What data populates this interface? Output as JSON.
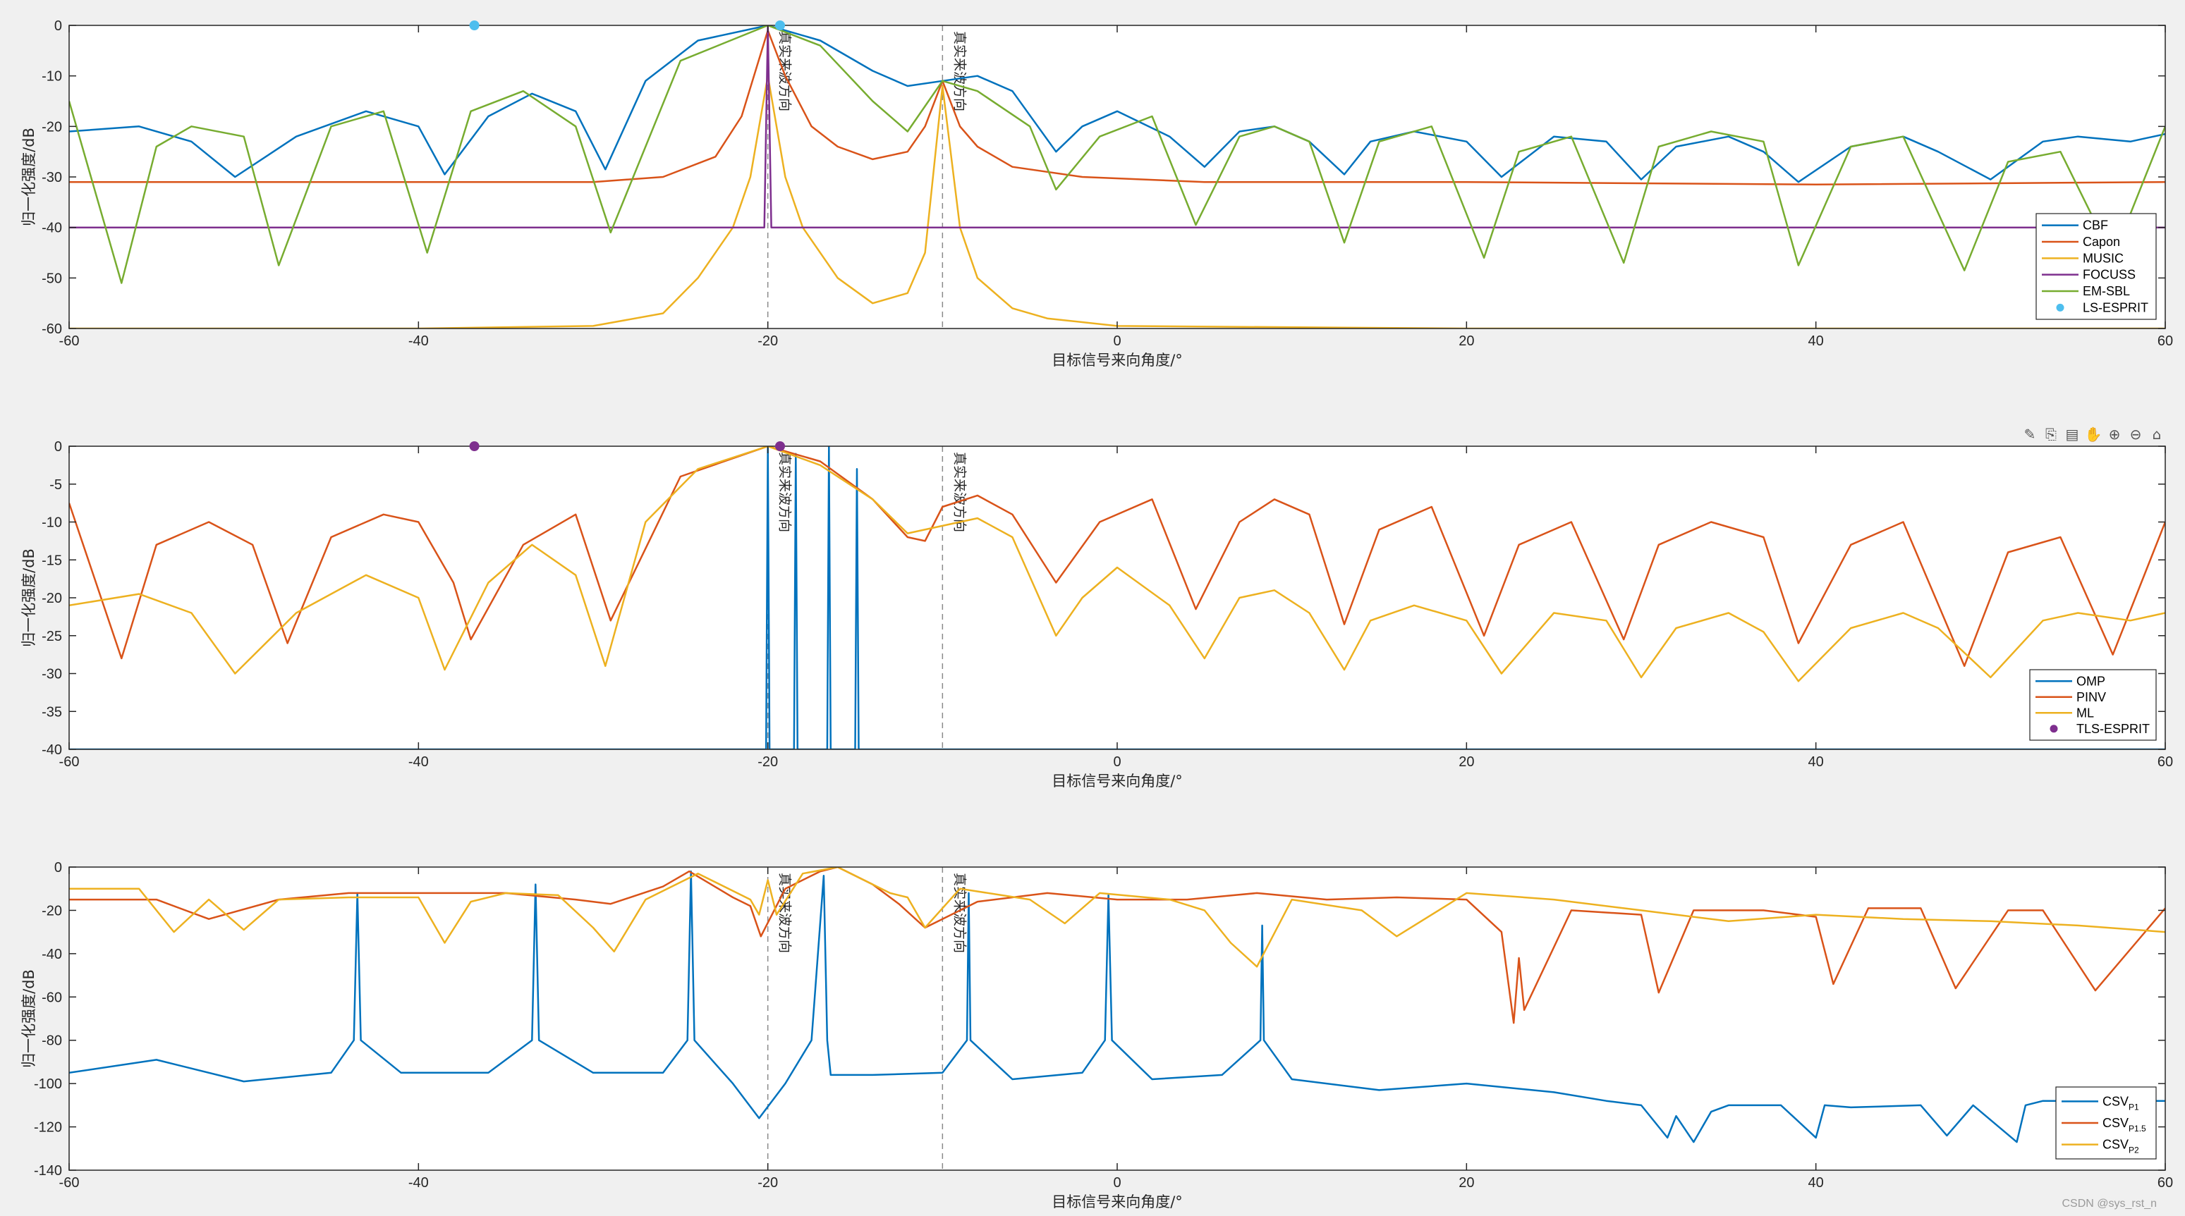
{
  "watermark": "CSDN @sys_rst_n",
  "toolbar": {
    "icons": [
      "brush-icon",
      "datatip-icon",
      "export-icon",
      "pan-icon",
      "zoom-in-icon",
      "zoom-out-icon",
      "home-icon"
    ],
    "glyphs": [
      "✎",
      "⎘",
      "▤",
      "✋",
      "⊕",
      "⊖",
      "⌂"
    ]
  },
  "chart_data": [
    {
      "type": "line",
      "xlabel": "目标信号来向角度/°",
      "ylabel": "归一化强度/dB",
      "xlim": [
        -60,
        60
      ],
      "ylim": [
        -60,
        0
      ],
      "xticks": [
        -60,
        -40,
        -20,
        0,
        20,
        40,
        60
      ],
      "yticks": [
        0,
        -10,
        -20,
        -30,
        -40,
        -50,
        -60
      ],
      "grid": false,
      "legend_position": "bottom-right",
      "annotations": [
        {
          "x": -20,
          "text": "真实来波方向"
        },
        {
          "x": -10,
          "text": "真实来波方向"
        }
      ],
      "series": [
        {
          "name": "CBF",
          "color": "#0072BD",
          "x": [
            -60,
            -56,
            -53,
            -50.5,
            -47,
            -43,
            -40,
            -38.5,
            -36,
            -33.5,
            -31,
            -29.3,
            -27,
            -24,
            -20,
            -17,
            -14,
            -12,
            -10,
            -8,
            -6,
            -3.5,
            -2,
            0,
            3,
            5,
            7,
            9,
            11,
            13,
            14.5,
            17,
            20,
            22,
            25,
            28,
            30,
            32,
            35,
            37,
            39,
            42,
            45,
            47,
            50,
            53,
            55,
            58,
            60
          ],
          "y": [
            -21,
            -20,
            -23,
            -30,
            -22,
            -17,
            -20,
            -29.5,
            -18,
            -13.5,
            -17,
            -28.5,
            -11,
            -3,
            0,
            -3,
            -9,
            -12,
            -11,
            -10,
            -13,
            -25,
            -20,
            -17,
            -22,
            -28,
            -21,
            -20,
            -23,
            -29.5,
            -23,
            -21,
            -23,
            -30,
            -22,
            -23,
            -30.5,
            -24,
            -22,
            -25,
            -31,
            -24,
            -22,
            -25,
            -30.5,
            -23,
            -22,
            -23,
            -21.5
          ]
        },
        {
          "name": "Capon",
          "color": "#D95319",
          "x": [
            -60,
            -40,
            -30,
            -26,
            -23,
            -21.5,
            -20,
            -19,
            -17.5,
            -16,
            -14,
            -12,
            -11,
            -10,
            -9,
            -8,
            -6,
            -2,
            5,
            20,
            40,
            60
          ],
          "y": [
            -31,
            -31,
            -31,
            -30,
            -26,
            -18,
            -1,
            -10,
            -20,
            -24,
            -26.5,
            -25,
            -20,
            -11,
            -20,
            -24,
            -28,
            -30,
            -31,
            -31,
            -31.5,
            -31
          ]
        },
        {
          "name": "MUSIC",
          "color": "#EDB120",
          "x": [
            -60,
            -40,
            -30,
            -26,
            -24,
            -22,
            -21,
            -20,
            -19,
            -18,
            -16,
            -14,
            -12,
            -11,
            -10,
            -9,
            -8,
            -6,
            -4,
            0,
            20,
            40,
            60
          ],
          "y": [
            -60,
            -60,
            -59.5,
            -57,
            -50,
            -40,
            -30,
            -10,
            -30,
            -40,
            -50,
            -55,
            -53,
            -45,
            -12,
            -40,
            -50,
            -56,
            -58,
            -59.5,
            -60,
            -60,
            -60
          ]
        },
        {
          "name": "FOCUSS",
          "color": "#7E2F8E",
          "x": [
            -60,
            -20.2,
            -20,
            -19.8,
            60
          ],
          "y": [
            -40,
            -40,
            0,
            -40,
            -40
          ]
        },
        {
          "name": "EM-SBL",
          "color": "#77AC30",
          "x": [
            -60,
            -57,
            -55,
            -53,
            -50,
            -48,
            -45,
            -42,
            -39.5,
            -37,
            -34,
            -31,
            -29,
            -25,
            -20,
            -17,
            -14,
            -12,
            -10,
            -8,
            -5,
            -3.5,
            -1,
            2,
            4.5,
            7,
            9,
            11,
            13,
            15,
            18,
            21,
            23,
            26,
            29,
            31,
            34,
            37,
            39,
            42,
            45,
            48.5,
            51,
            54,
            57,
            60
          ],
          "y": [
            -15,
            -51,
            -24,
            -20,
            -22,
            -47.5,
            -20,
            -17,
            -45,
            -17,
            -13,
            -20,
            -41,
            -7,
            0,
            -4,
            -15,
            -21,
            -11,
            -13,
            -20,
            -32.5,
            -22,
            -18,
            -39.5,
            -22,
            -20,
            -23,
            -43,
            -23,
            -20,
            -46,
            -25,
            -22,
            -47,
            -24,
            -21,
            -23,
            -47.5,
            -24,
            -22,
            -48.5,
            -27,
            -25,
            -46,
            -20
          ]
        },
        {
          "name": "LS-ESPRIT",
          "color": "#4DBEEE",
          "marker": true,
          "x": [
            -36.8,
            -19.3
          ],
          "y": [
            0,
            0
          ]
        }
      ]
    },
    {
      "type": "line",
      "xlabel": "目标信号来向角度/°",
      "ylabel": "归一化强度/dB",
      "xlim": [
        -60,
        60
      ],
      "ylim": [
        -40,
        0
      ],
      "xticks": [
        -60,
        -40,
        -20,
        0,
        20,
        40,
        60
      ],
      "yticks": [
        0,
        -5,
        -10,
        -15,
        -20,
        -25,
        -30,
        -35,
        -40
      ],
      "grid": false,
      "legend_position": "bottom-right",
      "annotations": [
        {
          "x": -20,
          "text": "真实来波方向"
        },
        {
          "x": -10,
          "text": "真实来波方向"
        }
      ],
      "series": [
        {
          "name": "OMP",
          "color": "#0072BD",
          "x": [
            -60,
            -20.1,
            -20,
            -19.9,
            -18.5,
            -18.4,
            -18.3,
            -16.6,
            -16.5,
            -16.4,
            -15,
            -14.9,
            -14.8,
            60
          ],
          "y": [
            -40,
            -40,
            0,
            -40,
            -40,
            -1,
            -40,
            -40,
            0,
            -40,
            -40,
            -3,
            -40,
            -40
          ]
        },
        {
          "name": "PINV",
          "color": "#D95319",
          "x": [
            -60,
            -57,
            -55,
            -52,
            -49.5,
            -47.5,
            -45,
            -42,
            -40,
            -38,
            -37,
            -34,
            -31,
            -29,
            -25,
            -20,
            -17,
            -14,
            -12,
            -11,
            -10,
            -8,
            -6,
            -3.5,
            -1,
            2,
            4.5,
            7,
            9,
            11,
            13,
            15,
            18,
            21,
            23,
            26,
            29,
            31,
            34,
            37,
            39,
            42,
            45,
            48.5,
            51,
            54,
            57,
            60
          ],
          "y": [
            -7.5,
            -28,
            -13,
            -10,
            -13,
            -26,
            -12,
            -9,
            -10,
            -18,
            -25.5,
            -13,
            -9,
            -23,
            -4,
            0,
            -2,
            -7,
            -12,
            -12.5,
            -8,
            -6.5,
            -9,
            -18,
            -10,
            -7,
            -21.5,
            -10,
            -7,
            -9,
            -23.5,
            -11,
            -8,
            -25,
            -13,
            -10,
            -25.5,
            -13,
            -10,
            -12,
            -26,
            -13,
            -10,
            -29,
            -14,
            -12,
            -27.5,
            -10
          ]
        },
        {
          "name": "ML",
          "color": "#EDB120",
          "x": [
            -60,
            -56,
            -53,
            -50.5,
            -47,
            -43,
            -40,
            -38.5,
            -36,
            -33.5,
            -31,
            -29.3,
            -27,
            -24,
            -20,
            -17,
            -14,
            -12,
            -10,
            -8,
            -6,
            -3.5,
            -2,
            0,
            3,
            5,
            7,
            9,
            11,
            13,
            14.5,
            17,
            20,
            22,
            25,
            28,
            30,
            32,
            35,
            37,
            39,
            42,
            45,
            47,
            50,
            53,
            55,
            58,
            60
          ],
          "y": [
            -21,
            -19.5,
            -22,
            -30,
            -22,
            -17,
            -20,
            -29.5,
            -18,
            -13,
            -17,
            -29,
            -10,
            -3,
            0,
            -2.5,
            -7,
            -11.5,
            -10.5,
            -9.5,
            -12,
            -25,
            -20,
            -16,
            -21,
            -28,
            -20,
            -19,
            -22,
            -29.5,
            -23,
            -21,
            -23,
            -30,
            -22,
            -23,
            -30.5,
            -24,
            -22,
            -24.5,
            -31,
            -24,
            -22,
            -24,
            -30.5,
            -23,
            -22,
            -23,
            -22
          ]
        },
        {
          "name": "TLS-ESPRIT",
          "color": "#7E2F8E",
          "marker": true,
          "x": [
            -36.8,
            -19.3
          ],
          "y": [
            0,
            0
          ]
        }
      ]
    },
    {
      "type": "line",
      "xlabel": "目标信号来向角度/°",
      "ylabel": "归一化强度/dB",
      "xlim": [
        -60,
        60
      ],
      "ylim": [
        -140,
        0
      ],
      "xticks": [
        -60,
        -40,
        -20,
        0,
        20,
        40,
        60
      ],
      "yticks": [
        0,
        -20,
        -40,
        -60,
        -80,
        -100,
        -120,
        -140
      ],
      "grid": false,
      "legend_position": "bottom-right",
      "annotations": [
        {
          "x": -20,
          "text": "真实来波方向"
        },
        {
          "x": -10,
          "text": "真实来波方向"
        }
      ],
      "series": [
        {
          "name": "CSV",
          "subscript": "P1",
          "color": "#0072BD",
          "x": [
            -60,
            -55,
            -50,
            -45,
            -43.7,
            -43.5,
            -43.3,
            -41,
            -36,
            -33.5,
            -33.3,
            -33.1,
            -30,
            -26,
            -24.6,
            -24.4,
            -24.2,
            -22,
            -20.5,
            -19,
            -17.5,
            -16.8,
            -16.6,
            -16.4,
            -14,
            -10,
            -8.6,
            -8.5,
            -8.4,
            -6,
            -2,
            -0.7,
            -0.5,
            -0.3,
            2,
            6,
            8.2,
            8.3,
            8.4,
            10,
            15,
            20,
            25,
            28,
            30,
            31.5,
            32,
            33,
            34,
            35,
            38,
            40,
            40.5,
            42,
            46,
            47.5,
            49,
            51.5,
            52,
            53,
            56,
            60
          ],
          "y": [
            -95,
            -89,
            -99,
            -95,
            -80,
            -12,
            -80,
            -95,
            -95,
            -80,
            -8,
            -80,
            -95,
            -95,
            -80,
            -2,
            -80,
            -100,
            -116,
            -100,
            -80,
            -4,
            -80,
            -96,
            -96,
            -95,
            -80,
            -12,
            -80,
            -98,
            -95,
            -80,
            -13,
            -80,
            -98,
            -96,
            -80,
            -27,
            -80,
            -98,
            -103,
            -100,
            -104,
            -108,
            -110,
            -125,
            -115,
            -127,
            -113,
            -110,
            -110,
            -125,
            -110,
            -111,
            -110,
            -124,
            -110,
            -127,
            -110,
            -108,
            -108,
            -108
          ]
        },
        {
          "name": "CSV",
          "subscript": "P1.5",
          "color": "#D95319",
          "x": [
            -60,
            -55,
            -52,
            -48,
            -44,
            -38,
            -35,
            -31,
            -29,
            -26,
            -24.5,
            -22,
            -21,
            -20.4,
            -19,
            -17,
            -16,
            -14,
            -12.5,
            -11,
            -8,
            -4,
            0,
            4,
            8,
            12,
            16,
            20,
            22,
            22.7,
            23,
            23.3,
            26,
            30,
            31,
            33,
            37,
            40,
            41,
            43,
            46,
            48,
            51,
            53,
            56,
            60
          ],
          "y": [
            -15,
            -15,
            -24,
            -15,
            -12,
            -12,
            -12,
            -15,
            -17,
            -9,
            -2,
            -14,
            -18,
            -32,
            -10,
            -2,
            0,
            -8,
            -17,
            -28,
            -16,
            -12,
            -15,
            -15,
            -12,
            -15,
            -14,
            -15,
            -30,
            -72,
            -42,
            -66,
            -20,
            -22,
            -58,
            -20,
            -20,
            -23,
            -54,
            -19,
            -19,
            -56,
            -20,
            -20,
            -57,
            -19
          ]
        },
        {
          "name": "CSV",
          "subscript": "P2",
          "color": "#EDB120",
          "x": [
            -60,
            -56,
            -54,
            -52,
            -50,
            -48,
            -44,
            -40,
            -38.5,
            -37,
            -35,
            -32,
            -30,
            -28.8,
            -27,
            -24,
            -21,
            -20.5,
            -20,
            -19.5,
            -18,
            -16,
            -13,
            -12,
            -11,
            -9,
            -5,
            -3,
            -1,
            3,
            5,
            6.5,
            8,
            10,
            14,
            16,
            20,
            25,
            30,
            35,
            40,
            45,
            50,
            55,
            60
          ],
          "y": [
            -10,
            -10,
            -30,
            -15,
            -29,
            -15,
            -14,
            -14,
            -35,
            -16,
            -12,
            -13,
            -28,
            -39,
            -15,
            -3,
            -15,
            -22,
            -6,
            -22,
            -3,
            0,
            -12,
            -14,
            -28,
            -10,
            -15,
            -26,
            -12,
            -15,
            -20,
            -35,
            -46,
            -15,
            -20,
            -32,
            -12,
            -15,
            -20,
            -25,
            -22,
            -24,
            -25,
            -27,
            -30
          ]
        }
      ]
    }
  ]
}
